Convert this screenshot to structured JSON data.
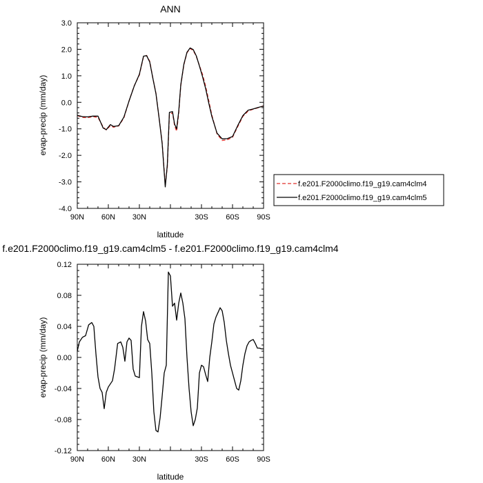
{
  "chart_data": [
    {
      "type": "line",
      "title": "ANN",
      "xlabel": "latitude",
      "ylabel": "evap-precip (mm/day)",
      "xlim": [
        90,
        -90
      ],
      "ylim": [
        -4.0,
        3.0
      ],
      "x_tick_values": [
        90,
        60,
        30,
        0,
        -30,
        -60,
        -90
      ],
      "x_tick_labels": [
        "90N",
        "60N",
        "30N",
        "",
        "30S",
        "60S",
        "90S"
      ],
      "y_tick_values": [
        3.0,
        2.0,
        1.0,
        0.0,
        -1.0,
        -2.0,
        -3.0,
        -4.0
      ],
      "y_tick_labels": [
        "3.0",
        "2.0",
        "1.0",
        "0.0",
        "-1.0",
        "-2.0",
        "-3.0",
        "-4.0"
      ],
      "legend_position": "right",
      "series": [
        {
          "name": "f.e201.F2000climo.f19_g19.cam4clm4",
          "color": "#e0302a",
          "dash": "dashed",
          "x": [
            90,
            85,
            80,
            75,
            70,
            65,
            62,
            58,
            55,
            50,
            45,
            40,
            35,
            30,
            26,
            23,
            20,
            17,
            14,
            11,
            8,
            5,
            3,
            1,
            -2,
            -4,
            -6,
            -8,
            -10,
            -13,
            -16,
            -19,
            -22,
            -25,
            -28,
            -31,
            -34,
            -37,
            -40,
            -45,
            -50,
            -55,
            -60,
            -65,
            -70,
            -75,
            -80,
            -85,
            -90
          ],
          "y": [
            -0.5,
            -0.57,
            -0.58,
            -0.54,
            -0.57,
            -0.93,
            -1.04,
            -0.88,
            -0.94,
            -0.89,
            -0.59,
            0.05,
            0.62,
            1.03,
            1.72,
            1.77,
            1.55,
            0.92,
            0.34,
            -0.58,
            -1.52,
            -3.1,
            -2.45,
            -0.48,
            -0.39,
            -0.88,
            -1.09,
            -0.43,
            0.63,
            1.42,
            1.87,
            2.03,
            1.96,
            1.73,
            1.39,
            1.05,
            0.61,
            0.07,
            -0.48,
            -1.19,
            -1.44,
            -1.41,
            -1.32,
            -0.92,
            -0.53,
            -0.33,
            -0.26,
            -0.2,
            -0.13
          ]
        },
        {
          "name": "f.e201.F2000climo.f19_g19.cam4clm5",
          "color": "#000000",
          "dash": "solid",
          "x": [
            90,
            85,
            80,
            75,
            70,
            65,
            62,
            58,
            55,
            50,
            45,
            40,
            35,
            30,
            26,
            23,
            20,
            17,
            14,
            11,
            8,
            5,
            3,
            1,
            -2,
            -4,
            -6,
            -8,
            -10,
            -13,
            -16,
            -19,
            -22,
            -25,
            -28,
            -31,
            -34,
            -37,
            -40,
            -45,
            -50,
            -55,
            -60,
            -65,
            -70,
            -75,
            -80,
            -85,
            -90
          ],
          "y": [
            -0.49,
            -0.54,
            -0.55,
            -0.52,
            -0.52,
            -0.97,
            -1.03,
            -0.84,
            -0.91,
            -0.88,
            -0.56,
            0.05,
            0.61,
            1.06,
            1.74,
            1.76,
            1.52,
            0.91,
            0.33,
            -0.58,
            -1.55,
            -3.19,
            -2.35,
            -0.38,
            -0.35,
            -0.82,
            -1.0,
            -0.35,
            0.66,
            1.44,
            1.89,
            2.05,
            1.99,
            1.75,
            1.37,
            0.97,
            0.52,
            -0.02,
            -0.53,
            -1.16,
            -1.38,
            -1.37,
            -1.29,
            -0.88,
            -0.5,
            -0.3,
            -0.25,
            -0.19,
            -0.14
          ]
        }
      ]
    },
    {
      "type": "line",
      "title": "f.e201.F2000climo.f19_g19.cam4clm5 - f.e201.F2000climo.f19_g19.cam4clm4",
      "xlabel": "latitude",
      "ylabel": "evap-precip (mm/day)",
      "xlim": [
        90,
        -90
      ],
      "ylim": [
        -0.12,
        0.12
      ],
      "x_tick_values": [
        90,
        60,
        30,
        0,
        -30,
        -60,
        -90
      ],
      "x_tick_labels": [
        "90N",
        "60N",
        "30N",
        "",
        "30S",
        "60S",
        "90S"
      ],
      "y_tick_values": [
        0.12,
        0.08,
        0.04,
        0.0,
        -0.04,
        -0.08,
        -0.12
      ],
      "y_tick_labels": [
        "0.12",
        "0.08",
        "0.04",
        "0.00",
        "-0.04",
        "-0.08",
        "-0.12"
      ],
      "series": [
        {
          "color": "#000000",
          "x": [
            90,
            88,
            85,
            82,
            79,
            76,
            74,
            72,
            70,
            68,
            66,
            64,
            62,
            60,
            58,
            56,
            54,
            51,
            48,
            46,
            44,
            42,
            40,
            38,
            36,
            34,
            32,
            30,
            28,
            26,
            24,
            22,
            20,
            18,
            16,
            14,
            12,
            10,
            8,
            6,
            4,
            2,
            0,
            -2,
            -4,
            -6,
            -8,
            -10,
            -12,
            -14,
            -16,
            -18,
            -20,
            -22,
            -24,
            -26,
            -28,
            -30,
            -32,
            -34,
            -36,
            -38,
            -40,
            -42,
            -44,
            -46,
            -48,
            -50,
            -52,
            -54,
            -56,
            -58,
            -60,
            -62,
            -64,
            -66,
            -68,
            -70,
            -72,
            -74,
            -76,
            -78,
            -80,
            -82,
            -84,
            -86,
            -88,
            -90
          ],
          "y": [
            0.008,
            0.02,
            0.026,
            0.028,
            0.042,
            0.045,
            0.04,
            0.005,
            -0.025,
            -0.04,
            -0.045,
            -0.066,
            -0.045,
            -0.038,
            -0.034,
            -0.03,
            -0.015,
            0.018,
            0.02,
            0.013,
            -0.005,
            0.02,
            0.025,
            0.022,
            -0.015,
            -0.024,
            -0.025,
            -0.026,
            0.04,
            0.059,
            0.047,
            0.023,
            0.018,
            -0.02,
            -0.07,
            -0.094,
            -0.096,
            -0.078,
            -0.05,
            -0.02,
            -0.01,
            0.11,
            0.105,
            0.066,
            0.07,
            0.048,
            0.07,
            0.083,
            0.07,
            0.05,
            0.0,
            -0.04,
            -0.07,
            -0.088,
            -0.08,
            -0.065,
            -0.02,
            -0.01,
            -0.012,
            -0.022,
            -0.031,
            0.0,
            0.02,
            0.043,
            0.052,
            0.058,
            0.064,
            0.06,
            0.045,
            0.022,
            0.005,
            -0.01,
            -0.02,
            -0.03,
            -0.04,
            -0.042,
            -0.03,
            -0.01,
            0.005,
            0.015,
            0.02,
            0.022,
            0.023,
            0.018,
            0.012,
            0.012,
            0.011,
            0.011
          ]
        }
      ]
    }
  ]
}
